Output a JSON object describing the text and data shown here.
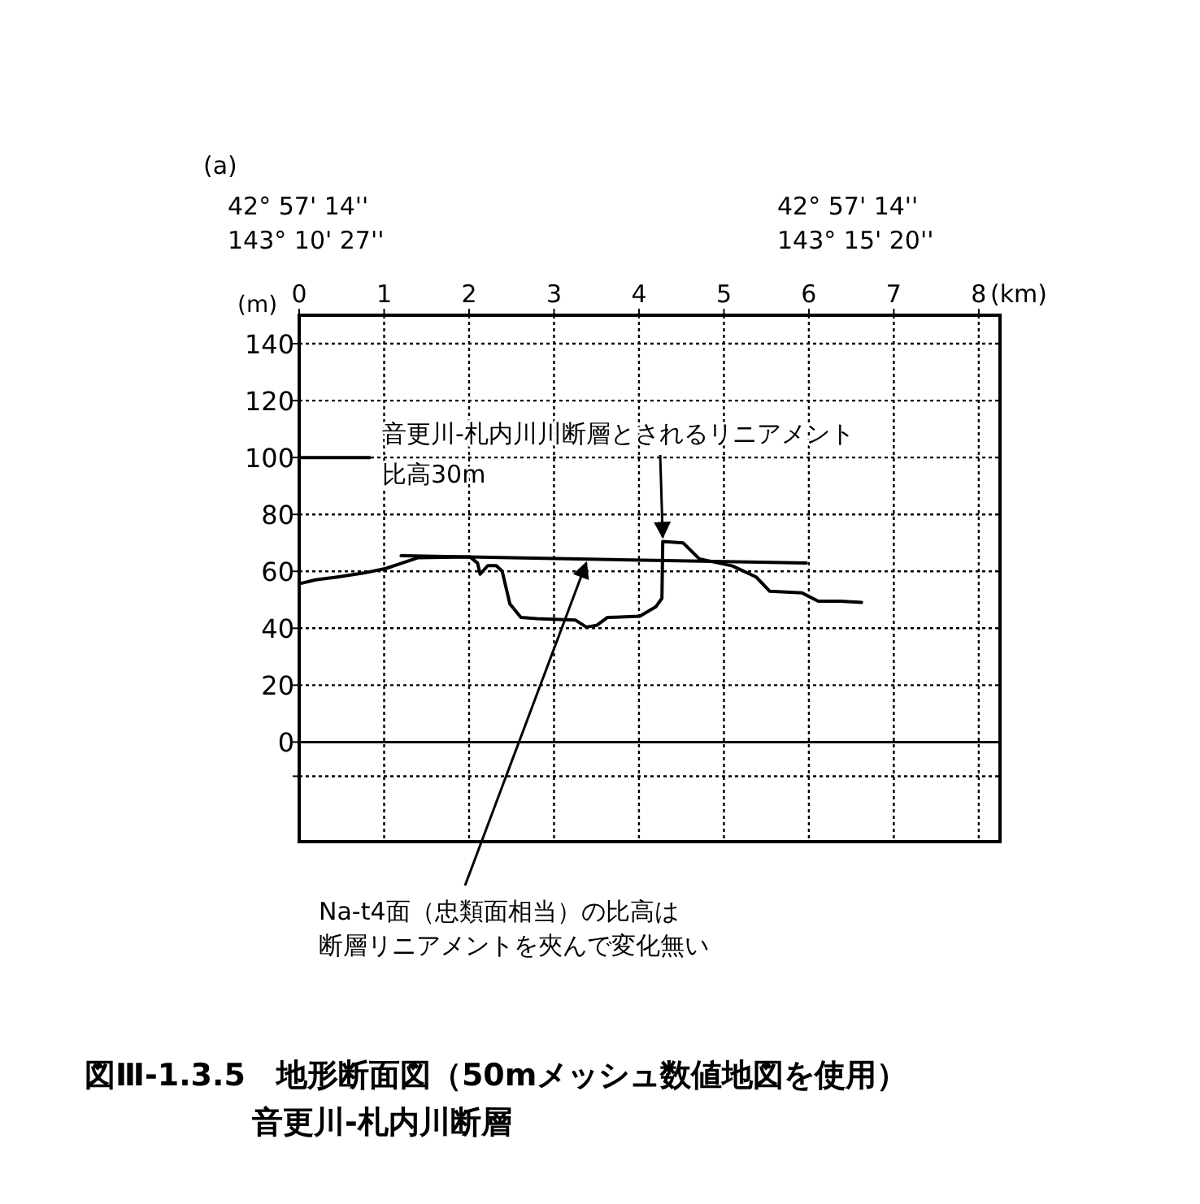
{
  "chart_data": {
    "type": "line",
    "title": "図Ⅲ-1.3.5　地形断面図（50mメッシュ数値地図を使用）",
    "subtitle": "音更川-札内川断層",
    "xlabel": "(km)",
    "ylabel": "(m)",
    "xlim": [
      0,
      8.25
    ],
    "xticks": [
      0,
      1,
      2,
      3,
      4,
      5,
      6,
      7,
      8
    ],
    "ylim": [
      -35,
      150
    ],
    "yticks": [
      {
        "value": -12,
        "label": null
      },
      0,
      20,
      40,
      60,
      80,
      100,
      120,
      140
    ],
    "grid": true,
    "line_style": "solid",
    "marker": "none",
    "series": [
      {
        "color": "#000000",
        "x": [
          0,
          0.19,
          0.45,
          0.76,
          1.02,
          1.21,
          1.4,
          2.01,
          2.1,
          2.13,
          2.22,
          2.32,
          2.39,
          2.48,
          2.61,
          2.8,
          3.25,
          3.38,
          3.5,
          3.63,
          4.01,
          4.2,
          4.27,
          4.28,
          4.52,
          4.71,
          5.1,
          5.38,
          5.54,
          5.92,
          6.11,
          6.37,
          6.62
        ],
        "values": [
          55.6,
          57,
          58,
          59.4,
          61,
          62.9,
          64.8,
          65.1,
          62.9,
          59,
          62,
          62,
          60,
          48.6,
          43.8,
          43.4,
          42.9,
          40.4,
          41,
          43.8,
          44.2,
          47.6,
          50.5,
          70.5,
          70,
          64.4,
          61.9,
          58,
          53,
          52.4,
          49.5,
          49.5,
          49.1
        ]
      },
      {
        "color": "#000000",
        "x": [
          1.2,
          5.97
        ],
        "values": [
          65.5,
          62.9
        ]
      },
      {
        "color": "#000000",
        "x": [
          0,
          0.83
        ],
        "values": [
          100,
          100
        ]
      }
    ],
    "ref_lines": [
      {
        "axis": "y",
        "value": 0
      }
    ],
    "annotations": [
      "(a)",
      "42° 57' 14''\n143° 10' 27''",
      "42° 57' 14''\n143° 15' 20''",
      {
        "text": "音更川-札内川川断層とされるリニアメント",
        "x": 4.28,
        "y": 72
      },
      "比高30m",
      {
        "text": "Na-t4面（忠類面相当）の比高は",
        "x": 3.38,
        "y": 63
      },
      "断層リニアメントを夾んで変化無い"
    ]
  }
}
